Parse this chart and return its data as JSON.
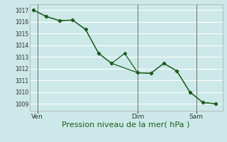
{
  "line1_x": [
    0,
    1,
    2,
    3,
    4,
    5,
    6,
    7,
    8,
    9,
    10,
    11,
    12,
    13,
    14
  ],
  "line1_y": [
    1017.0,
    1016.45,
    1016.1,
    1016.15,
    1015.35,
    1013.3,
    1012.45,
    1013.3,
    1011.65,
    1011.6,
    1012.45,
    1011.8,
    1010.0,
    1009.1,
    1009.0
  ],
  "line2_x": [
    0,
    1,
    2,
    3,
    4,
    5,
    6,
    8,
    9,
    10,
    11,
    12,
    13,
    14
  ],
  "line2_y": [
    1017.0,
    1016.45,
    1016.1,
    1016.15,
    1015.35,
    1013.3,
    1012.45,
    1011.65,
    1011.6,
    1012.45,
    1011.8,
    1010.0,
    1009.1,
    1009.0
  ],
  "xtick_positions": [
    0.3,
    8,
    12.5
  ],
  "xtick_labels": [
    "Ven",
    "Dim",
    "Sam"
  ],
  "vline_positions": [
    0.3,
    8,
    12.5
  ],
  "ytick_start": 1009,
  "ytick_end": 1017,
  "ytick_step": 1,
  "ymin": 1008.4,
  "ymax": 1017.5,
  "xmin": -0.3,
  "xmax": 14.5,
  "line_color": "#1a5e1a",
  "marker": "D",
  "marker_size": 2.5,
  "bg_color": "#cce8e8",
  "grid_color": "#ffffff",
  "vline_color": "#6a6a6a",
  "xlabel": "Pression niveau de la mer( hPa )",
  "xlabel_fontsize": 8,
  "xlabel_color": "#1a5e1a"
}
